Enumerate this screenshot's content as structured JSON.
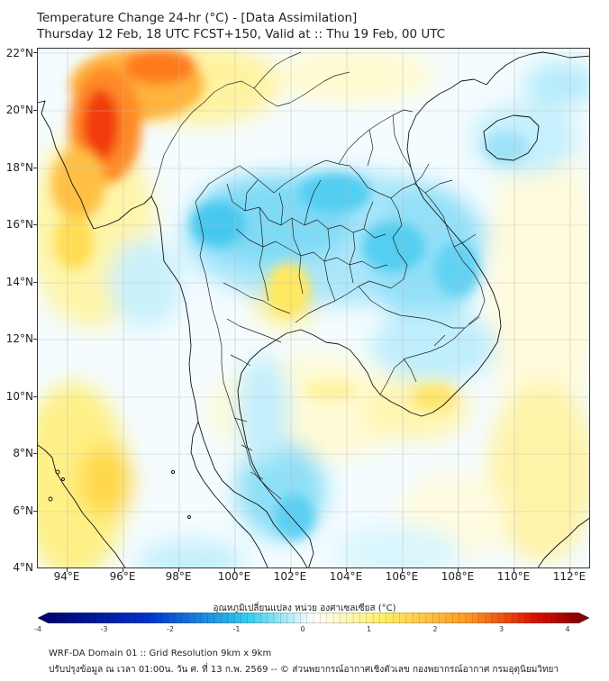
{
  "title_line1": "Temperature Change 24-hr (°C) - [Data Assimilation]",
  "title_line2": "Thursday 12 Feb, 18 UTC FCST+150, Valid at :: Thu 19 Feb, 00 UTC",
  "lat_labels": [
    "22°N",
    "20°N",
    "18°N",
    "16°N",
    "14°N",
    "12°N",
    "10°N",
    "8°N",
    "6°N",
    "4°N"
  ],
  "lon_labels": [
    "94°E",
    "96°E",
    "98°E",
    "100°E",
    "102°E",
    "104°E",
    "106°E",
    "108°E",
    "110°E",
    "112°E"
  ],
  "colorbar": {
    "title": "อุณหภูมิเปลี่ยนแปลง หน่วย องศาเซลเซียส (°C)",
    "ticks": [
      "-4",
      "-3",
      "-2",
      "-1",
      "0",
      "1",
      "2",
      "3",
      "4"
    ],
    "min": -4,
    "max": 4,
    "colors": {
      "very_cold": "#000066",
      "cold": "#0033cc",
      "cool": "#33ccee",
      "neutral": "#ffffff",
      "warm": "#ffee66",
      "hot": "#ff9922",
      "very_hot": "#dd1100",
      "extreme": "#770000"
    }
  },
  "footer_line1": "WRF-DA Domain 01 :: Grid Resolution 9km x 9km",
  "footer_line2": "ปรับปรุงข้อมูล ณ เวลา 01:00น. วัน ศ. ที่ 13 ก.พ. 2569 -- © ส่วนพยากรณ์อากาศเชิงตัวเลข กองพยากรณ์อากาศ กรมอุตุนิยมวิทยา"
}
